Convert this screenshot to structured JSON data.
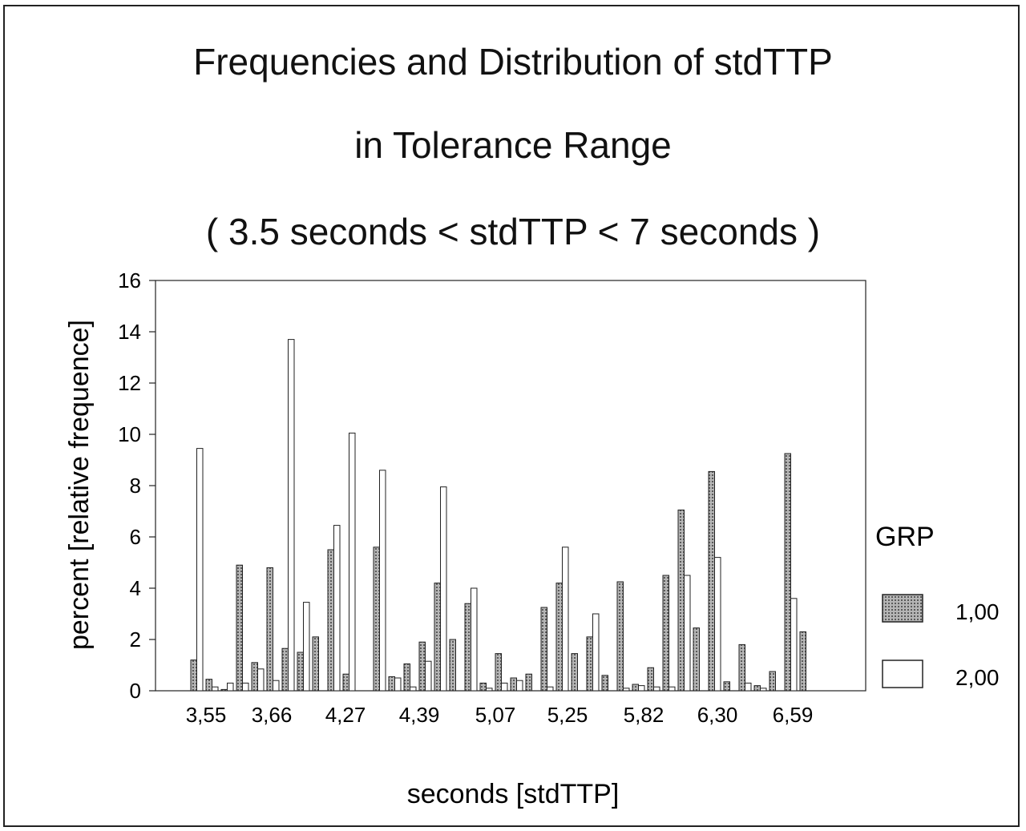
{
  "chart_data": {
    "type": "bar",
    "title": "Frequencies and Distribution of stdTTP",
    "subtitle_1": "in Tolerance Range",
    "subtitle_2": "( 3.5 seconds < stdTTP < 7 seconds )",
    "xlabel": "seconds [stdTTP]",
    "ylabel": "percent [relative frequence]",
    "ylim": [
      0,
      16
    ],
    "yticks": [
      "0",
      "2",
      "4",
      "6",
      "8",
      "10",
      "12",
      "14",
      "16"
    ],
    "xtick_labels": [
      "3,55",
      "3,66",
      "4,27",
      "4,39",
      "5,07",
      "5,25",
      "5,82",
      "6,30",
      "6,59"
    ],
    "legend": {
      "title": "GRP",
      "position": "right"
    },
    "grid": false,
    "series": [
      {
        "name": "1,00",
        "color": "#8a8a8a",
        "values": [
          1.2,
          0.45,
          0.05,
          4.9,
          1.1,
          4.8,
          1.65,
          1.5,
          2.1,
          5.5,
          0.65,
          0,
          5.6,
          0.55,
          1.05,
          1.9,
          4.2,
          2.0,
          3.4,
          0.3,
          1.45,
          0.5,
          0.65,
          3.25,
          4.2,
          1.45,
          2.1,
          0.6,
          4.25,
          0.25,
          0.9,
          4.5,
          7.05,
          2.45,
          8.55,
          0.35,
          1.8,
          0.2,
          0.75,
          9.25,
          2.3
        ]
      },
      {
        "name": "2,00",
        "color": "#ffffff",
        "values": [
          9.45,
          0.15,
          0.3,
          0.3,
          0.85,
          0.4,
          13.7,
          3.45,
          0,
          6.45,
          10.05,
          0,
          8.6,
          0.5,
          0.15,
          1.15,
          7.95,
          0,
          4.0,
          0.1,
          0.3,
          0.4,
          0,
          0.15,
          5.6,
          0,
          3.0,
          0,
          0.1,
          0.2,
          0.15,
          0.15,
          4.5,
          0,
          5.2,
          0,
          0.3,
          0.1,
          0,
          3.6,
          0
        ]
      }
    ]
  }
}
